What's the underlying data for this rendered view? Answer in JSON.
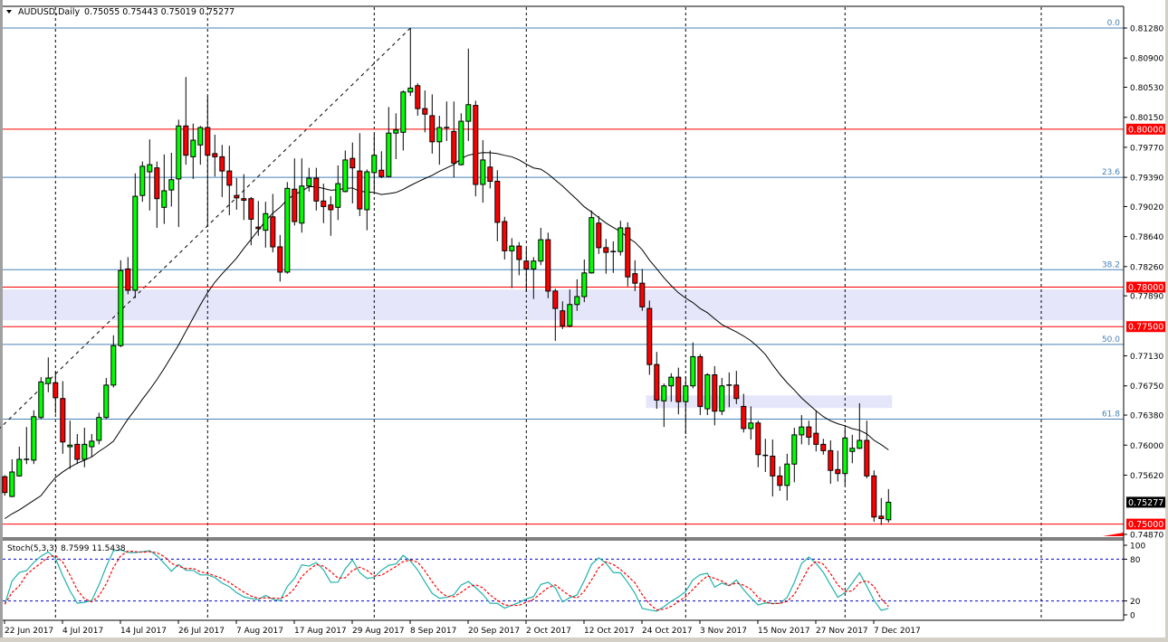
{
  "header": {
    "symbol_timeframe": "AUDUSD,Daily",
    "ohlc": "0.75055 0.75443 0.75019 0.75277",
    "menu_icon": "triangle-down-icon"
  },
  "colors": {
    "bull": "#00ff00",
    "bear": "#ff0000",
    "level_line": "#ff0000",
    "fib_line": "#4682b4",
    "zone": "#e6e6fa",
    "ma": "#000000",
    "stoch_main": "#20b2aa",
    "stoch_signal": "#ff0000",
    "stoch_levels": "#0000cd",
    "current_price_bg": "#000000"
  },
  "chart_data": [
    {
      "type": "candlestick",
      "title": "AUDUSD,Daily",
      "ylim": [
        0.7487,
        0.8128
      ],
      "grid": false,
      "y_ticks": [
        "0.81280",
        "0.80900",
        "0.80530",
        "0.80150",
        "0.79770",
        "0.79390",
        "0.79020",
        "0.78640",
        "0.78260",
        "0.77890",
        "0.77130",
        "0.76750",
        "0.76380",
        "0.76000",
        "0.75620",
        "0.74870"
      ],
      "x_labels": [
        "22 Jun 2017",
        "4 Jul 2017",
        "14 Jul 2017",
        "26 Jul 2017",
        "7 Aug 2017",
        "17 Aug 2017",
        "29 Aug 2017",
        "8 Sep 2017",
        "20 Sep 2017",
        "2 Oct 2017",
        "12 Oct 2017",
        "24 Oct 2017",
        "3 Nov 2017",
        "15 Nov 2017",
        "27 Nov 2017",
        "7 Dec 2017"
      ],
      "candles_ohlc": [
        [
          0.756,
          0.7562,
          0.7536,
          0.754
        ],
        [
          0.7535,
          0.7582,
          0.7534,
          0.7566
        ],
        [
          0.7561,
          0.7598,
          0.756,
          0.7582
        ],
        [
          0.7581,
          0.7623,
          0.7576,
          0.7582
        ],
        [
          0.7581,
          0.7644,
          0.7576,
          0.7636
        ],
        [
          0.7635,
          0.7686,
          0.7633,
          0.768
        ],
        [
          0.7678,
          0.7711,
          0.7667,
          0.7685
        ],
        [
          0.7679,
          0.7693,
          0.764,
          0.766
        ],
        [
          0.7659,
          0.7681,
          0.7589,
          0.7604
        ],
        [
          0.7598,
          0.7631,
          0.757,
          0.76
        ],
        [
          0.7601,
          0.7614,
          0.7576,
          0.7582
        ],
        [
          0.7582,
          0.7622,
          0.7572,
          0.7601
        ],
        [
          0.7598,
          0.7614,
          0.7585,
          0.7605
        ],
        [
          0.7606,
          0.7641,
          0.7601,
          0.7635
        ],
        [
          0.7635,
          0.7685,
          0.7633,
          0.7676
        ],
        [
          0.7676,
          0.7739,
          0.7673,
          0.7726
        ],
        [
          0.7726,
          0.7834,
          0.7724,
          0.7821
        ],
        [
          0.7823,
          0.7838,
          0.7791,
          0.7796
        ],
        [
          0.7796,
          0.7944,
          0.7786,
          0.7915
        ],
        [
          0.7916,
          0.7959,
          0.7908,
          0.7953
        ],
        [
          0.7946,
          0.7987,
          0.7897,
          0.7955
        ],
        [
          0.7951,
          0.7959,
          0.7875,
          0.7912
        ],
        [
          0.7901,
          0.7968,
          0.788,
          0.7922
        ],
        [
          0.7923,
          0.797,
          0.7902,
          0.7936
        ],
        [
          0.7937,
          0.8012,
          0.7876,
          0.8004
        ],
        [
          0.8004,
          0.8066,
          0.7955,
          0.7967
        ],
        [
          0.7965,
          0.8007,
          0.7937,
          0.7986
        ],
        [
          0.798,
          0.8004,
          0.7955,
          0.8002
        ],
        [
          0.8002,
          0.8042,
          0.7877,
          0.7967
        ],
        [
          0.7969,
          0.7993,
          0.794,
          0.7965
        ],
        [
          0.7965,
          0.798,
          0.7914,
          0.7947
        ],
        [
          0.7947,
          0.7979,
          0.7891,
          0.7929
        ],
        [
          0.7916,
          0.7938,
          0.7898,
          0.7913
        ],
        [
          0.7912,
          0.7943,
          0.7885,
          0.791
        ],
        [
          0.7912,
          0.7914,
          0.7853,
          0.7886
        ],
        [
          0.7876,
          0.7909,
          0.7865,
          0.7874
        ],
        [
          0.7872,
          0.7908,
          0.785,
          0.7893
        ],
        [
          0.7889,
          0.7918,
          0.7844,
          0.7851
        ],
        [
          0.7851,
          0.7866,
          0.7807,
          0.7819
        ],
        [
          0.7819,
          0.7933,
          0.7817,
          0.7925
        ],
        [
          0.7924,
          0.7963,
          0.7878,
          0.7883
        ],
        [
          0.7881,
          0.7963,
          0.7869,
          0.7928
        ],
        [
          0.7928,
          0.7951,
          0.7921,
          0.7938
        ],
        [
          0.7938,
          0.7951,
          0.7897,
          0.7909
        ],
        [
          0.7909,
          0.7931,
          0.7881,
          0.7902
        ],
        [
          0.7904,
          0.7915,
          0.7865,
          0.7898
        ],
        [
          0.7901,
          0.7954,
          0.7885,
          0.7931
        ],
        [
          0.7921,
          0.7973,
          0.792,
          0.7961
        ],
        [
          0.7963,
          0.7983,
          0.7906,
          0.7951
        ],
        [
          0.7947,
          0.7995,
          0.789,
          0.7899
        ],
        [
          0.7898,
          0.7949,
          0.7872,
          0.7946
        ],
        [
          0.7945,
          0.7994,
          0.7921,
          0.7967
        ],
        [
          0.7948,
          0.7972,
          0.7938,
          0.794
        ],
        [
          0.794,
          0.8028,
          0.7939,
          0.7995
        ],
        [
          0.7995,
          0.802,
          0.7962,
          0.7999
        ],
        [
          0.7996,
          0.8049,
          0.7973,
          0.8047
        ],
        [
          0.8047,
          0.8128,
          0.8042,
          0.8052
        ],
        [
          0.8055,
          0.8058,
          0.8017,
          0.8026
        ],
        [
          0.8026,
          0.8049,
          0.7996,
          0.8019
        ],
        [
          0.8017,
          0.8044,
          0.7969,
          0.7984
        ],
        [
          0.7984,
          0.8017,
          0.7955,
          0.8002
        ],
        [
          0.8001,
          0.8035,
          0.7985,
          0.8002
        ],
        [
          0.7997,
          0.8035,
          0.7939,
          0.7957
        ],
        [
          0.7955,
          0.802,
          0.7954,
          0.801
        ],
        [
          0.801,
          0.8102,
          0.7985,
          0.8031
        ],
        [
          0.803,
          0.8036,
          0.7915,
          0.793
        ],
        [
          0.793,
          0.7986,
          0.7907,
          0.7961
        ],
        [
          0.7952,
          0.7973,
          0.7925,
          0.7934
        ],
        [
          0.7934,
          0.7948,
          0.7858,
          0.7882
        ],
        [
          0.7883,
          0.7889,
          0.7835,
          0.7846
        ],
        [
          0.7846,
          0.7862,
          0.7799,
          0.7852
        ],
        [
          0.7852,
          0.7857,
          0.7815,
          0.7835
        ],
        [
          0.7833,
          0.785,
          0.7794,
          0.7823
        ],
        [
          0.7823,
          0.7838,
          0.7785,
          0.7833
        ],
        [
          0.7833,
          0.7875,
          0.7828,
          0.786
        ],
        [
          0.786,
          0.7869,
          0.7786,
          0.7795
        ],
        [
          0.7795,
          0.7798,
          0.7732,
          0.7773
        ],
        [
          0.777,
          0.7782,
          0.7747,
          0.7751
        ],
        [
          0.7751,
          0.7797,
          0.7749,
          0.7778
        ],
        [
          0.7778,
          0.781,
          0.777,
          0.7788
        ],
        [
          0.7788,
          0.7835,
          0.7781,
          0.7818
        ],
        [
          0.7818,
          0.7897,
          0.7817,
          0.7888
        ],
        [
          0.7881,
          0.789,
          0.7842,
          0.785
        ],
        [
          0.785,
          0.7861,
          0.7817,
          0.7844
        ],
        [
          0.7845,
          0.7858,
          0.7818,
          0.7844
        ],
        [
          0.7845,
          0.7884,
          0.784,
          0.7875
        ],
        [
          0.7875,
          0.7882,
          0.7801,
          0.7813
        ],
        [
          0.7817,
          0.7834,
          0.7795,
          0.7805
        ],
        [
          0.7805,
          0.7823,
          0.777,
          0.7775
        ],
        [
          0.7773,
          0.7783,
          0.7689,
          0.7702
        ],
        [
          0.7702,
          0.7718,
          0.7646,
          0.7657
        ],
        [
          0.7656,
          0.7678,
          0.7623,
          0.7675
        ],
        [
          0.7675,
          0.7691,
          0.7655,
          0.7686
        ],
        [
          0.7686,
          0.7698,
          0.7639,
          0.7655
        ],
        [
          0.7655,
          0.7687,
          0.7614,
          0.7675
        ],
        [
          0.7675,
          0.773,
          0.7672,
          0.7712
        ],
        [
          0.7712,
          0.7715,
          0.7638,
          0.7649
        ],
        [
          0.7646,
          0.7691,
          0.7638,
          0.7689
        ],
        [
          0.7689,
          0.77,
          0.7625,
          0.7643
        ],
        [
          0.7643,
          0.7685,
          0.7638,
          0.7675
        ],
        [
          0.7675,
          0.7692,
          0.7648,
          0.7676
        ],
        [
          0.7676,
          0.7694,
          0.7652,
          0.7659
        ],
        [
          0.7649,
          0.7665,
          0.7616,
          0.7621
        ],
        [
          0.7621,
          0.7649,
          0.7607,
          0.7628
        ],
        [
          0.7628,
          0.7631,
          0.7572,
          0.7588
        ],
        [
          0.7586,
          0.7608,
          0.7566,
          0.7587
        ],
        [
          0.7586,
          0.7607,
          0.7535,
          0.7561
        ],
        [
          0.7561,
          0.7573,
          0.7542,
          0.7549
        ],
        [
          0.7549,
          0.7589,
          0.753,
          0.7576
        ],
        [
          0.7576,
          0.7622,
          0.7553,
          0.7613
        ],
        [
          0.7613,
          0.7638,
          0.7601,
          0.7623
        ],
        [
          0.7623,
          0.7631,
          0.76,
          0.761
        ],
        [
          0.7615,
          0.7644,
          0.7592,
          0.7601
        ],
        [
          0.7601,
          0.7608,
          0.7588,
          0.7593
        ],
        [
          0.7593,
          0.7606,
          0.7551,
          0.7568
        ],
        [
          0.7569,
          0.7593,
          0.7554,
          0.7564
        ],
        [
          0.7564,
          0.7622,
          0.7549,
          0.7609
        ],
        [
          0.7592,
          0.7613,
          0.7577,
          0.7596
        ],
        [
          0.7596,
          0.7653,
          0.7595,
          0.7606
        ],
        [
          0.7606,
          0.7631,
          0.7558,
          0.7561
        ],
        [
          0.7561,
          0.7568,
          0.7503,
          0.7509
        ],
        [
          0.751,
          0.7533,
          0.7499,
          0.7507
        ],
        [
          0.75055,
          0.75443,
          0.75019,
          0.75277
        ]
      ],
      "moving_average": {
        "period": 25,
        "leading_values": [
          0.7507,
          0.7513,
          0.7518,
          0.7524,
          0.753,
          0.7536,
          0.7548,
          0.7559,
          0.7566,
          0.7572,
          0.7577,
          0.7581,
          0.7585,
          0.7592,
          0.7598,
          0.7605,
          0.7619,
          0.7633,
          0.7645,
          0.7658,
          0.767,
          0.7683,
          0.7697,
          0.7712
        ]
      },
      "horizontal_levels": [
        {
          "price": 0.8,
          "label": "0.80000"
        },
        {
          "price": 0.78,
          "label": "0.78000"
        },
        {
          "price": 0.775,
          "label": "0.77500"
        },
        {
          "price": 0.75,
          "label": "0.75000"
        }
      ],
      "current_price": {
        "price": 0.75277,
        "label": "0.75277"
      },
      "fibonacci": {
        "high": 0.8128,
        "low": 0.7327,
        "levels": [
          {
            "ratio": 0.0,
            "label": "0.0"
          },
          {
            "ratio": 23.6,
            "label": "23.6"
          },
          {
            "ratio": 38.2,
            "label": "38.2"
          },
          {
            "ratio": 50.0,
            "label": "50.0"
          },
          {
            "ratio": 61.8,
            "label": "61.8"
          }
        ]
      },
      "zones": [
        {
          "from_price": 0.7758,
          "to_price": 0.7797,
          "start_bar": -1,
          "end": "right-edge"
        },
        {
          "from_price": 0.7647,
          "to_price": 0.7663,
          "start_bar": 89,
          "end_bar": 124
        }
      ]
    },
    {
      "type": "line",
      "title": "Stoch(5,3,3)",
      "readout": "8.7599 11.5438",
      "k_period": 5,
      "d_period": 3,
      "slowing": 3,
      "ylim": [
        0,
        100
      ],
      "levels": [
        80,
        20
      ],
      "y_ticks": [
        "100",
        "80",
        "20",
        "0"
      ]
    }
  ]
}
